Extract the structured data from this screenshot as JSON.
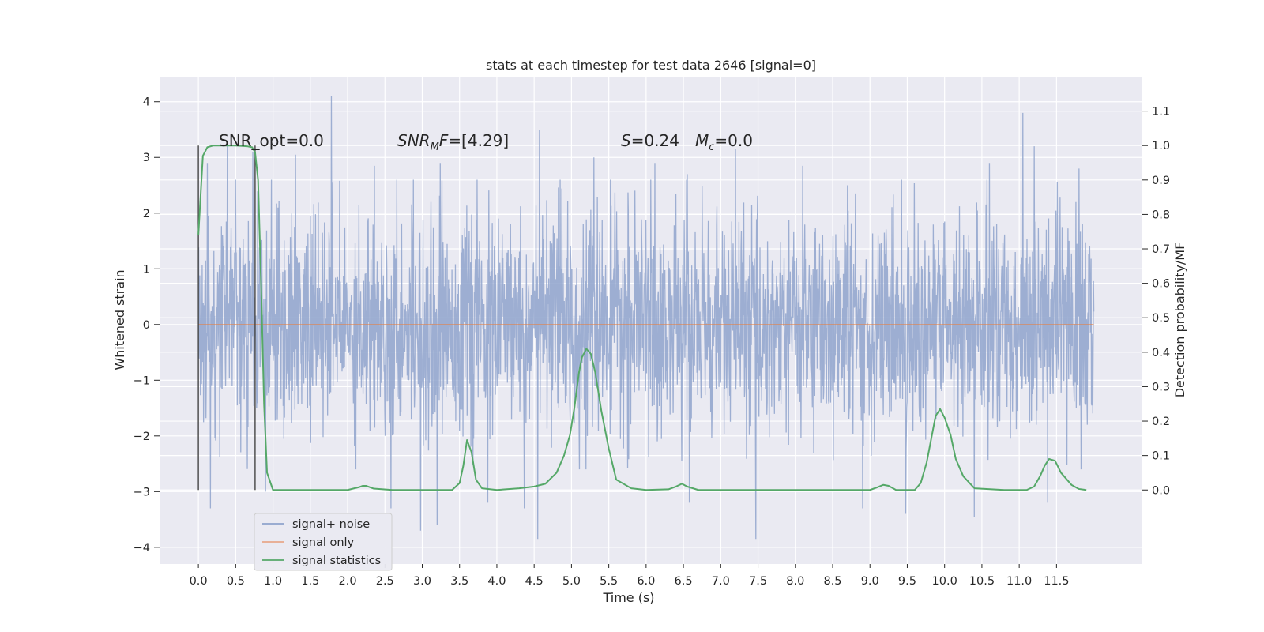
{
  "chart_data": {
    "type": "line",
    "title": "stats at each timestep for test data 2646 [signal=0]",
    "xlabel": "Time (s)",
    "ylabel": "Whitened strain",
    "y2label": "Detection probability/MF",
    "xlim": [
      -0.52,
      12.65
    ],
    "ylim": [
      -4.3,
      4.45
    ],
    "y2lim": [
      -0.215,
      1.2
    ],
    "xticks": [
      0.0,
      0.5,
      1.0,
      1.5,
      2.0,
      2.5,
      3.0,
      3.5,
      4.0,
      4.5,
      5.0,
      5.5,
      6.0,
      6.5,
      7.0,
      7.5,
      8.0,
      8.5,
      9.0,
      9.5,
      10.0,
      10.5,
      11.0,
      11.5
    ],
    "xtick_labels": [
      "0.0",
      "0.5",
      "1.0",
      "1.5",
      "2.0",
      "2.5",
      "3.0",
      "3.5",
      "4.0",
      "4.5",
      "5.0",
      "5.5",
      "6.0",
      "6.5",
      "7.0",
      "7.5",
      "8.0",
      "8.5",
      "9.0",
      "9.5",
      "10.0",
      "10.5",
      "11.0",
      "11.5"
    ],
    "yticks": [
      4,
      3,
      2,
      1,
      0,
      -1,
      -2,
      -3,
      -4
    ],
    "ytick_labels": [
      "4",
      "3",
      "2",
      "1",
      "0",
      "−1",
      "−2",
      "−3",
      "−4"
    ],
    "y2ticks": [
      1.1,
      1.0,
      0.9,
      0.8,
      0.7,
      0.6,
      0.5,
      0.4,
      0.3,
      0.2,
      0.1,
      0.0
    ],
    "y2tick_labels": [
      "1.1",
      "1.0",
      "0.9",
      "0.8",
      "0.7",
      "0.6",
      "0.5",
      "0.4",
      "0.3",
      "0.2",
      "0.1",
      "0.0"
    ],
    "grid": true,
    "legend_placement": "lower-left",
    "noise": {
      "x_range": [
        0.0,
        12.0
      ],
      "typical_band": [
        -1.6,
        1.7
      ],
      "peaks": [
        {
          "x": 0.12,
          "y": 2.9
        },
        {
          "x": 0.39,
          "y": 3.25
        },
        {
          "x": 0.73,
          "y": 3.1
        },
        {
          "x": 1.3,
          "y": 3.05
        },
        {
          "x": 1.78,
          "y": 4.1
        },
        {
          "x": 2.36,
          "y": 2.85
        },
        {
          "x": 2.88,
          "y": 2.6
        },
        {
          "x": 3.24,
          "y": 2.9
        },
        {
          "x": 4.57,
          "y": 3.5
        },
        {
          "x": 5.3,
          "y": 3.0
        },
        {
          "x": 6.12,
          "y": 2.9
        },
        {
          "x": 6.55,
          "y": 2.7
        },
        {
          "x": 7.2,
          "y": 3.15
        },
        {
          "x": 8.1,
          "y": 2.85
        },
        {
          "x": 8.7,
          "y": 2.5
        },
        {
          "x": 10.6,
          "y": 2.9
        },
        {
          "x": 11.05,
          "y": 3.8
        },
        {
          "x": 11.2,
          "y": 3.2
        },
        {
          "x": 11.8,
          "y": 2.8
        }
      ],
      "troughs": [
        {
          "x": 0.16,
          "y": -3.3
        },
        {
          "x": 0.9,
          "y": -3.0
        },
        {
          "x": 2.58,
          "y": -3.3
        },
        {
          "x": 2.98,
          "y": -3.7
        },
        {
          "x": 3.2,
          "y": -3.6
        },
        {
          "x": 3.88,
          "y": -3.2
        },
        {
          "x": 4.37,
          "y": -3.3
        },
        {
          "x": 4.55,
          "y": -3.85
        },
        {
          "x": 6.58,
          "y": -3.2
        },
        {
          "x": 7.47,
          "y": -3.85
        },
        {
          "x": 8.9,
          "y": -3.3
        },
        {
          "x": 9.48,
          "y": -3.4
        },
        {
          "x": 10.4,
          "y": -3.45
        },
        {
          "x": 11.38,
          "y": -3.2
        }
      ]
    },
    "series": [
      {
        "name": "signal+ noise",
        "color": "#8fa3cc",
        "description_of_values": "dense noise trace"
      },
      {
        "name": "signal only",
        "color": "#dd8452",
        "x": [
          0.0,
          12.0
        ],
        "y": [
          0.0,
          0.0
        ]
      },
      {
        "name": "signal statistics",
        "color": "#55a868",
        "axis": "right",
        "x": [
          0.0,
          0.06,
          0.12,
          0.2,
          0.3,
          0.5,
          0.65,
          0.72,
          0.76,
          0.8,
          0.84,
          0.88,
          0.92,
          1.0,
          1.2,
          1.6,
          2.0,
          2.15,
          2.2,
          2.25,
          2.35,
          2.6,
          3.0,
          3.4,
          3.5,
          3.55,
          3.6,
          3.66,
          3.72,
          3.8,
          4.0,
          4.3,
          4.5,
          4.65,
          4.8,
          4.9,
          4.98,
          5.04,
          5.1,
          5.14,
          5.2,
          5.26,
          5.32,
          5.4,
          5.5,
          5.6,
          5.8,
          6.0,
          6.3,
          6.4,
          6.48,
          6.55,
          6.7,
          7.0,
          7.5,
          8.0,
          8.5,
          9.0,
          9.1,
          9.18,
          9.25,
          9.35,
          9.6,
          9.68,
          9.76,
          9.84,
          9.88,
          9.94,
          10.0,
          10.08,
          10.15,
          10.25,
          10.4,
          10.8,
          11.1,
          11.2,
          11.28,
          11.34,
          11.4,
          11.48,
          11.56,
          11.7,
          11.8,
          11.9
        ],
        "y": [
          0.74,
          0.97,
          0.995,
          1.0,
          1.0,
          1.0,
          0.998,
          0.995,
          0.98,
          0.9,
          0.6,
          0.25,
          0.05,
          0.0,
          0.0,
          0.0,
          0.0,
          0.008,
          0.012,
          0.012,
          0.004,
          0.0,
          0.0,
          0.0,
          0.02,
          0.07,
          0.145,
          0.11,
          0.03,
          0.005,
          0.0,
          0.005,
          0.01,
          0.018,
          0.05,
          0.1,
          0.16,
          0.24,
          0.34,
          0.385,
          0.41,
          0.395,
          0.34,
          0.23,
          0.12,
          0.03,
          0.005,
          0.0,
          0.002,
          0.01,
          0.018,
          0.01,
          0.0,
          0.0,
          0.0,
          0.0,
          0.0,
          0.0,
          0.008,
          0.015,
          0.012,
          0.0,
          0.0,
          0.02,
          0.08,
          0.17,
          0.215,
          0.235,
          0.21,
          0.16,
          0.09,
          0.04,
          0.005,
          0.0,
          0.0,
          0.01,
          0.04,
          0.07,
          0.09,
          0.085,
          0.05,
          0.015,
          0.003,
          0.0
        ]
      }
    ],
    "vlines": [
      {
        "x": 0.0,
        "y_from": 0.0,
        "y_to": 1.0,
        "axis": "right",
        "color": "#444444"
      },
      {
        "x": 0.76,
        "y_from": 0.0,
        "y_to": 1.0,
        "axis": "right",
        "color": "#444444"
      }
    ],
    "annotations": {
      "snr_opt": "SNR_opt=0.0",
      "snr_mf_main": "SNR",
      "snr_mf_sub": "M",
      "snr_mf_rest": "F=[4.29]",
      "s_italic": "S",
      "s_rest": "=0.24",
      "mc_main": "M",
      "mc_sub": "c",
      "mc_rest": "=0.0"
    },
    "legend": [
      {
        "label": "signal+ noise",
        "color": "#8fa3cc"
      },
      {
        "label": "signal only",
        "color": "#e8a88a"
      },
      {
        "label": "signal statistics",
        "color": "#55a868"
      }
    ],
    "colors": {
      "plot_bg": "#eaeaf2",
      "grid": "#ffffff",
      "text": "#262626"
    }
  }
}
